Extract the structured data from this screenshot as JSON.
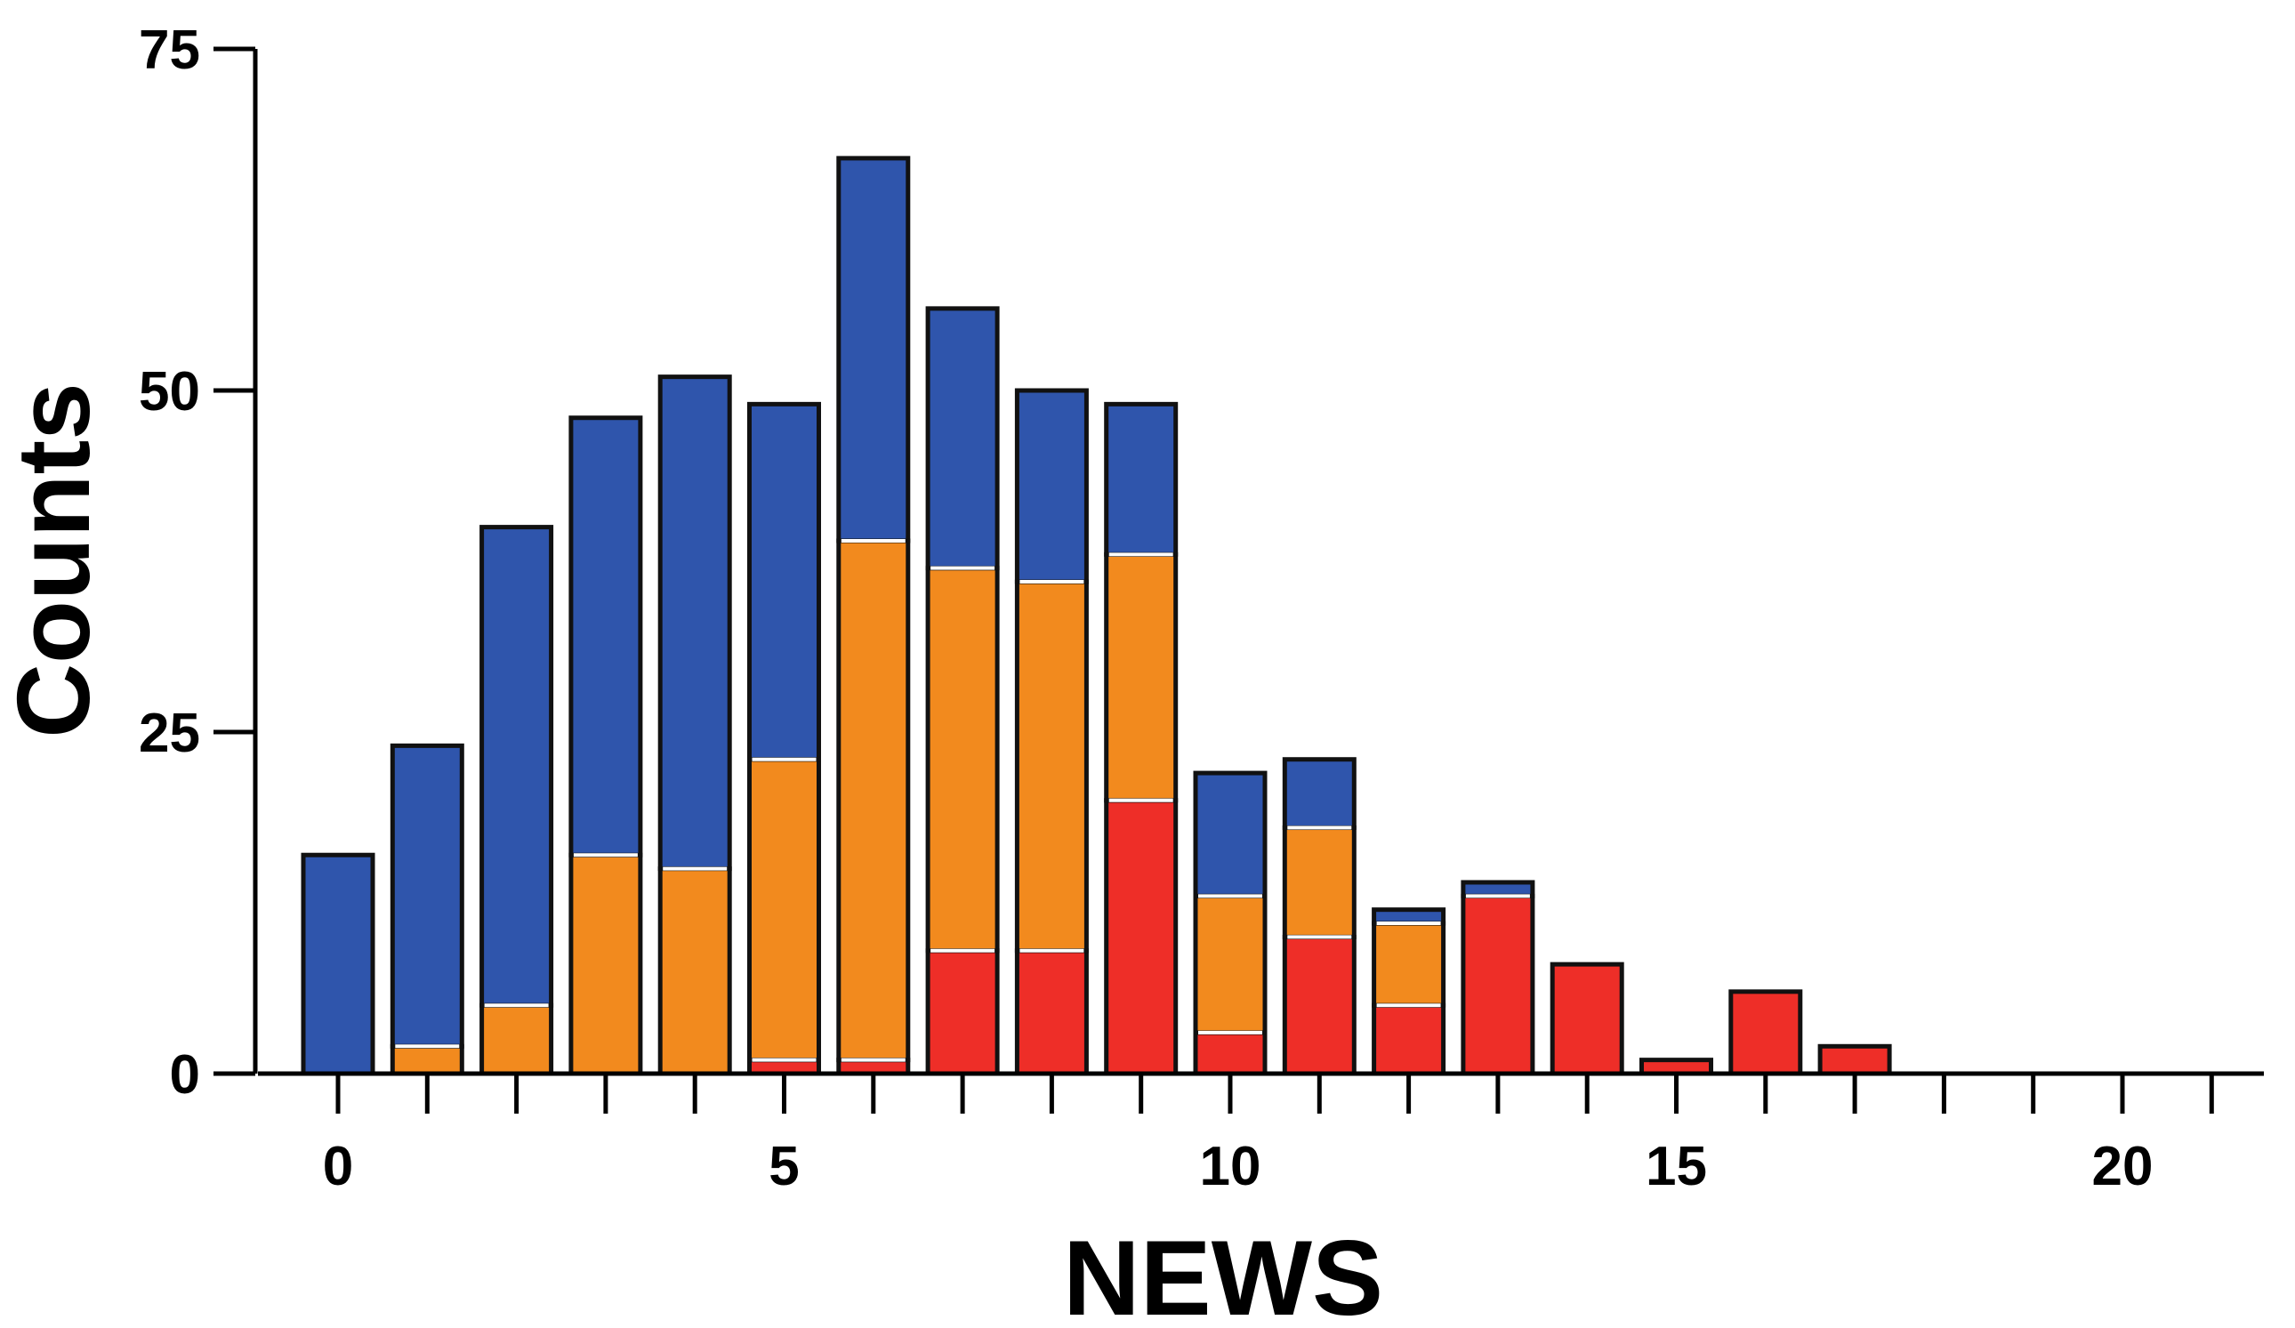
{
  "chart_data": {
    "type": "bar",
    "stacked": true,
    "title": "",
    "xlabel": "NEWS",
    "ylabel": "Counts",
    "xlim": [
      -1,
      21.5
    ],
    "ylim": [
      0,
      75
    ],
    "x_ticks": [
      0,
      5,
      10,
      15,
      20
    ],
    "y_ticks": [
      0,
      25,
      50,
      75
    ],
    "grid": false,
    "legend": "none",
    "x": [
      0,
      1,
      2,
      3,
      4,
      5,
      6,
      7,
      8,
      9,
      10,
      11,
      12,
      13,
      14,
      15,
      16,
      17
    ],
    "series": [
      {
        "color": "#2f55ac",
        "values": [
          16,
          22,
          35,
          32,
          36,
          26,
          28,
          19,
          14,
          11,
          9,
          5,
          1,
          1,
          0,
          0,
          0,
          0
        ]
      },
      {
        "color": "#f28a1e",
        "values": [
          0,
          2,
          5,
          16,
          15,
          22,
          38,
          28,
          27,
          18,
          10,
          8,
          6,
          0,
          0,
          0,
          0,
          0
        ]
      },
      {
        "color": "#ee2e28",
        "values": [
          0,
          0,
          0,
          0,
          0,
          1,
          1,
          9,
          9,
          20,
          3,
          10,
          5,
          13,
          8,
          1,
          6,
          2
        ]
      }
    ]
  }
}
